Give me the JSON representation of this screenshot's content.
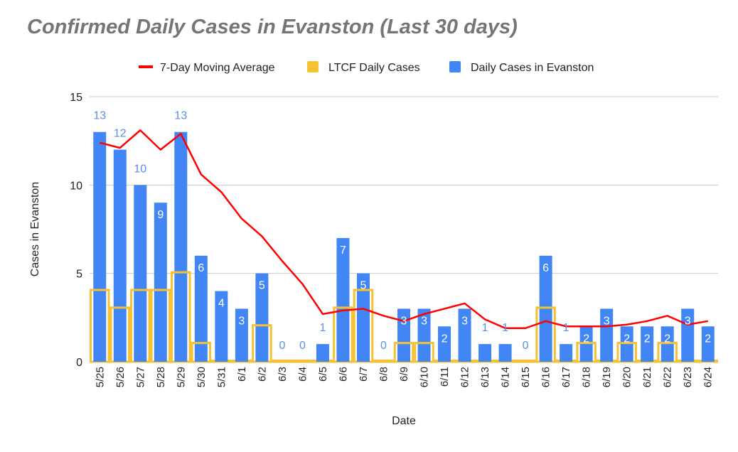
{
  "chart_data": {
    "type": "bar",
    "title": "Confirmed Daily Cases in Evanston (Last 30 days)",
    "xlabel": "Date",
    "ylabel": "Cases in Evanston",
    "ylim": [
      0,
      15
    ],
    "yticks": [
      "0",
      "5",
      "10",
      "15"
    ],
    "grid": true,
    "legend_position": "top",
    "categories": [
      "5/25",
      "5/26",
      "5/27",
      "5/28",
      "5/29",
      "5/30",
      "5/31",
      "6/1",
      "6/2",
      "6/3",
      "6/4",
      "6/5",
      "6/6",
      "6/7",
      "6/8",
      "6/9",
      "6/10",
      "6/11",
      "6/12",
      "6/13",
      "6/14",
      "6/15",
      "6/16",
      "6/17",
      "6/18",
      "6/19",
      "6/20",
      "6/21",
      "6/22",
      "6/23",
      "6/24"
    ],
    "series": [
      {
        "name": "7-Day Moving Average",
        "type": "line",
        "color": "#FF0000",
        "values": [
          12.4,
          12.1,
          13.1,
          12.0,
          12.9,
          10.6,
          9.6,
          8.1,
          7.1,
          5.7,
          4.4,
          2.7,
          2.9,
          3.0,
          2.6,
          2.3,
          2.7,
          3.0,
          3.3,
          2.4,
          1.9,
          1.9,
          2.3,
          2.0,
          2.0,
          2.0,
          2.1,
          2.3,
          2.6,
          2.1,
          2.3
        ]
      },
      {
        "name": "LTCF Daily Cases",
        "type": "bar",
        "color": "#F4C232",
        "values": [
          4,
          3,
          4,
          4,
          5,
          1,
          0,
          0,
          2,
          0,
          0,
          0,
          3,
          4,
          0,
          1,
          1,
          0,
          0,
          0,
          0,
          0,
          3,
          0,
          1,
          0,
          1,
          0,
          1,
          0,
          0
        ]
      },
      {
        "name": "Daily Cases in Evanston",
        "type": "bar",
        "color": "#4285F4",
        "values": [
          13,
          12,
          10,
          9,
          13,
          6,
          4,
          3,
          5,
          0,
          0,
          1,
          7,
          5,
          0,
          3,
          3,
          2,
          3,
          1,
          1,
          0,
          6,
          1,
          2,
          3,
          2,
          2,
          2,
          3,
          2
        ]
      }
    ]
  }
}
